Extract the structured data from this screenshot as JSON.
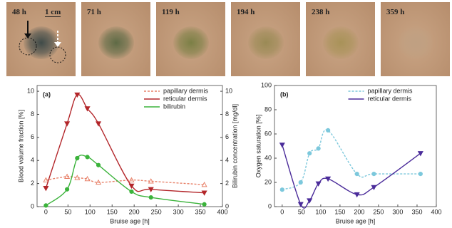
{
  "photos": [
    {
      "label": "48 h"
    },
    {
      "label": "71 h"
    },
    {
      "label": "119 h"
    },
    {
      "label": "194 h"
    },
    {
      "label": "238 h"
    },
    {
      "label": "359 h"
    }
  ],
  "scale_label": "1 cm",
  "chart_data": [
    {
      "type": "line",
      "panel_label": "(a)",
      "xlabel": "Bruise age [h]",
      "ylabel": "Blood volume fraction [%]",
      "y2label": "Bilirubin concentration [mg/dl]",
      "x": [
        0,
        48,
        71,
        94,
        119,
        194,
        238,
        359
      ],
      "xlim": [
        -20,
        400
      ],
      "xticks": [
        0,
        50,
        100,
        150,
        200,
        250,
        300,
        350,
        400
      ],
      "ylim": [
        0,
        10.5
      ],
      "yticks": [
        0,
        2,
        4,
        6,
        8,
        10
      ],
      "y2lim": [
        0,
        10.5
      ],
      "y2ticks": [
        0,
        2,
        4,
        6,
        8,
        10
      ],
      "series": [
        {
          "name": "papillary dermis",
          "color": "#e8826a",
          "dashed": true,
          "marker": "triangle-up",
          "values": [
            2.3,
            2.6,
            2.5,
            2.4,
            2.1,
            2.3,
            2.2,
            1.9
          ]
        },
        {
          "name": "reticular dermis",
          "color": "#b3262a",
          "dashed": false,
          "marker": "triangle-down",
          "values": [
            1.6,
            7.2,
            9.7,
            8.5,
            7.2,
            1.8,
            1.5,
            1.2
          ]
        },
        {
          "name": "bilirubin",
          "color": "#3bb33b",
          "dashed": false,
          "marker": "circle",
          "axis": "y2",
          "values": [
            0.1,
            1.5,
            4.2,
            4.3,
            3.6,
            1.3,
            0.8,
            0.2
          ]
        }
      ]
    },
    {
      "type": "line",
      "panel_label": "(b)",
      "xlabel": "Bruise age [h]",
      "ylabel": "Oxygen saturation [%]",
      "x": [
        0,
        48,
        71,
        94,
        119,
        194,
        238,
        359
      ],
      "xlim": [
        -20,
        400
      ],
      "xticks": [
        0,
        50,
        100,
        150,
        200,
        250,
        300,
        350,
        400
      ],
      "ylim": [
        0,
        100
      ],
      "yticks": [
        0,
        20,
        40,
        60,
        80,
        100
      ],
      "series": [
        {
          "name": "papillary dermis",
          "color": "#7cc8dc",
          "dashed": true,
          "marker": "circle",
          "values": [
            14,
            20,
            44,
            48,
            63,
            27,
            27,
            27
          ]
        },
        {
          "name": "reticular dermis",
          "color": "#4b2c9a",
          "dashed": false,
          "marker": "triangle-down",
          "values": [
            51,
            2,
            5,
            19,
            23,
            10,
            16,
            44
          ]
        }
      ]
    }
  ]
}
